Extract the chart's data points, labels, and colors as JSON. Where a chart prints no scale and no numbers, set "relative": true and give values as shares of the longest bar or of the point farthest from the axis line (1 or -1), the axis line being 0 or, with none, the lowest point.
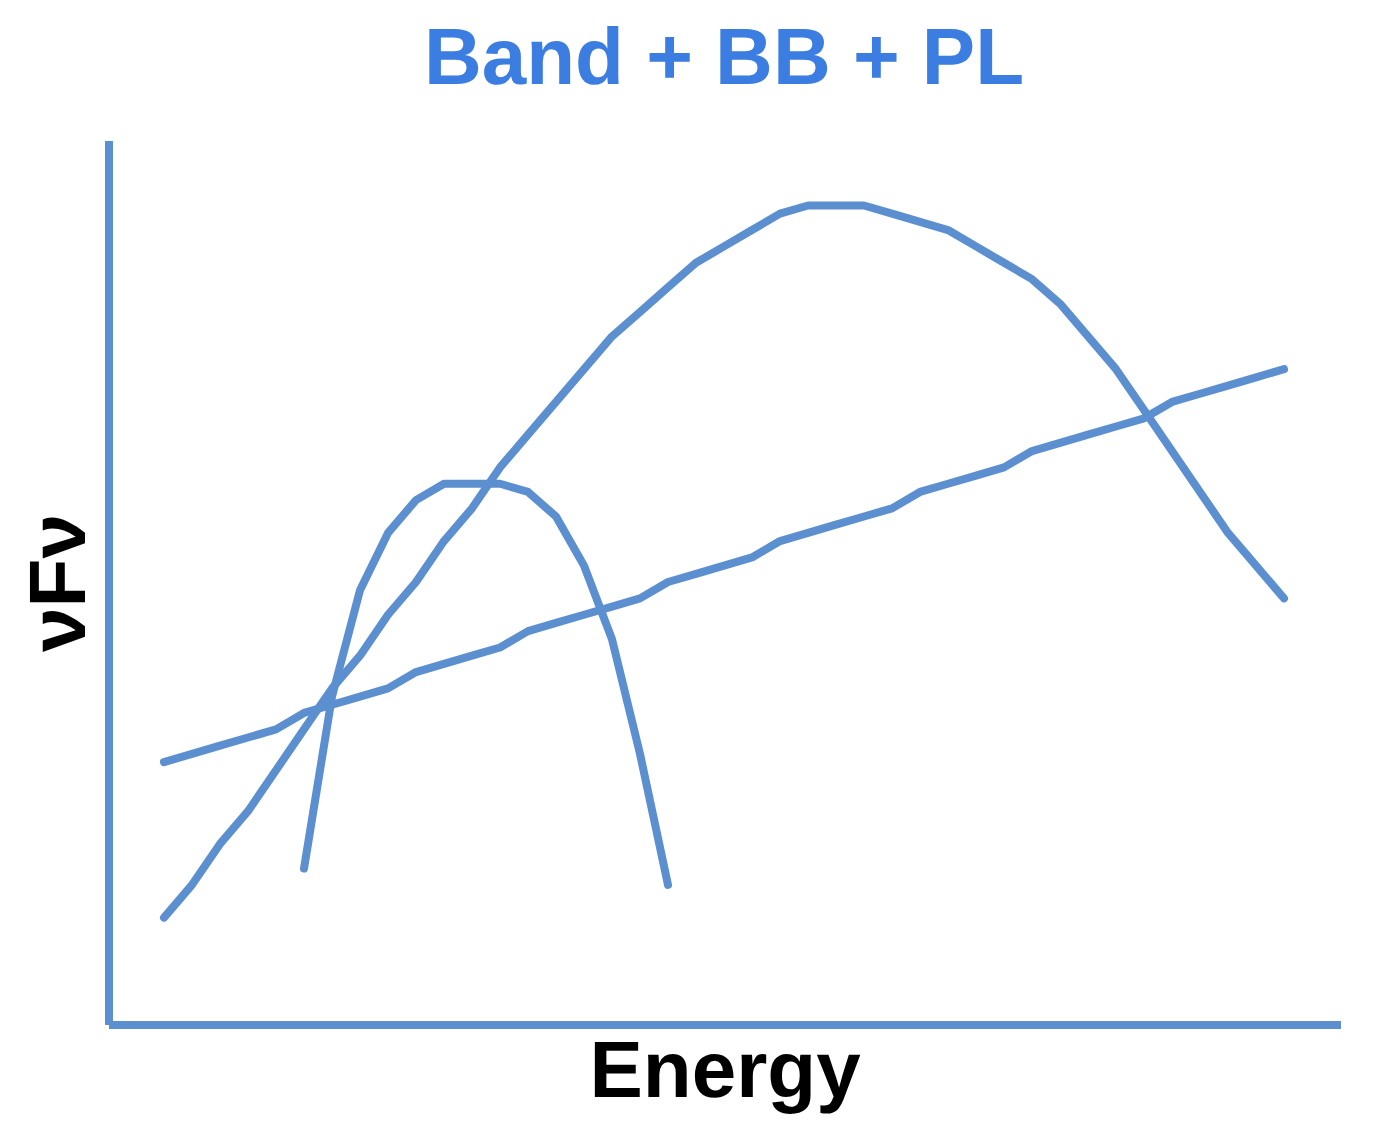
{
  "chart_data": {
    "type": "line",
    "title": "Band + BB + PL",
    "xlabel": "Energy",
    "ylabel": "νFν",
    "relative": true,
    "grid": false,
    "marker": "none",
    "line_style": "solid",
    "categories": [
      null,
      null,
      null,
      null,
      null,
      null,
      null,
      null,
      null,
      null,
      null,
      null,
      null,
      null,
      null,
      null,
      null,
      null,
      null,
      null,
      null,
      null,
      null,
      null,
      null,
      null,
      null,
      null,
      null,
      null,
      null,
      null,
      null,
      null,
      null,
      null,
      null,
      null,
      null,
      null,
      null
    ],
    "series": [
      {
        "color": "#5b8fd0",
        "values": [
          0.13,
          0.17,
          0.22,
          0.26,
          0.31,
          0.36,
          0.41,
          0.45,
          0.5,
          0.54,
          0.59,
          0.63,
          0.68,
          0.72,
          0.76,
          0.8,
          0.84,
          0.87,
          0.9,
          0.93,
          0.95,
          0.97,
          0.99,
          1.0,
          1.0,
          1.0,
          0.99,
          0.98,
          0.97,
          0.95,
          0.93,
          0.91,
          0.88,
          0.84,
          0.8,
          0.75,
          0.7,
          0.65,
          0.6,
          0.56,
          0.52
        ]
      },
      {
        "color": "#5b8fd0",
        "values": [
          null,
          null,
          null,
          null,
          null,
          0.19,
          0.4,
          0.53,
          0.6,
          0.64,
          0.66,
          0.66,
          0.66,
          0.65,
          0.62,
          0.56,
          0.47,
          0.33,
          0.17,
          null,
          null,
          null,
          null,
          null,
          null,
          null,
          null,
          null,
          null,
          null,
          null,
          null,
          null,
          null,
          null,
          null,
          null,
          null,
          null,
          null,
          null
        ]
      },
      {
        "color": "#5b8fd0",
        "values": [
          0.32,
          0.33,
          0.34,
          0.35,
          0.36,
          0.38,
          0.39,
          0.4,
          0.41,
          0.43,
          0.44,
          0.45,
          0.46,
          0.48,
          0.49,
          0.5,
          0.51,
          0.52,
          0.54,
          0.55,
          0.56,
          0.57,
          0.59,
          0.6,
          0.61,
          0.62,
          0.63,
          0.65,
          0.66,
          0.67,
          0.68,
          0.7,
          0.71,
          0.72,
          0.73,
          0.74,
          0.76,
          0.77,
          0.78,
          0.79,
          0.8
        ]
      }
    ]
  }
}
